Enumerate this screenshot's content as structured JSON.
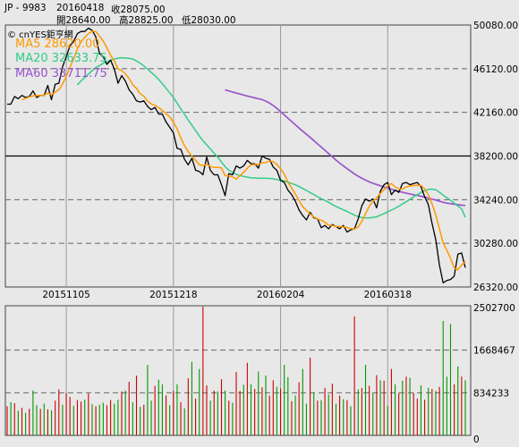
{
  "header": {
    "ticker": "JP - 9983",
    "date": "20160418",
    "close": "收28075.00",
    "open": "開28640.00",
    "high": "高28825.00",
    "low": "低28030.00"
  },
  "colors": {
    "background": "#e8e8e8",
    "price": "#000000",
    "ma5": "#ff9900",
    "ma20": "#33cc88",
    "ma60": "#9955cc",
    "volume_up": "#cc0000",
    "volume_down": "#009900",
    "grid_dash": "#666666",
    "grid_vertical": "#999999"
  },
  "chart_data": [
    {
      "type": "line",
      "title": "",
      "watermark": "© cnYES鉅亨網",
      "grid": true,
      "y_axis_side": "right",
      "ylim": [
        26320,
        50080
      ],
      "y_ticks": [
        26320,
        30280,
        34240,
        38200,
        42160,
        46120,
        50080
      ],
      "y_tick_labels": [
        "26320.00",
        "30280.00",
        "34240.00",
        "38200.00",
        "42160.00",
        "46120.00",
        "50080.00"
      ],
      "x_tick_labels": [
        "20151105",
        "20151218",
        "20160204",
        "20160318"
      ],
      "x_tick_index": [
        16,
        45,
        74,
        103
      ],
      "legend_entries": [
        "MA5 28620.00",
        "MA20 32633.75",
        "MA60 33711.75"
      ],
      "series": [
        {
          "name": "Close",
          "values": [
            42900,
            42900,
            43600,
            43400,
            43700,
            43500,
            43600,
            44100,
            43500,
            43700,
            43700,
            44600,
            43300,
            44700,
            44800,
            46300,
            47200,
            48200,
            48600,
            49300,
            49500,
            49500,
            49800,
            49600,
            49000,
            47500,
            47200,
            46500,
            46900,
            46100,
            44800,
            45500,
            45000,
            44200,
            43800,
            43200,
            43100,
            43200,
            42700,
            42400,
            42600,
            42000,
            42000,
            41300,
            40800,
            40300,
            38900,
            38800,
            37900,
            37400,
            38000,
            36900,
            36800,
            36500,
            38100,
            36900,
            36500,
            36500,
            35600,
            34600,
            36600,
            36500,
            37300,
            37100,
            37300,
            37800,
            37500,
            37500,
            37100,
            38200,
            38000,
            37900,
            37200,
            36900,
            36000,
            35800,
            35100,
            34700,
            34100,
            33300,
            32800,
            32400,
            33100,
            32600,
            32500,
            31700,
            31900,
            31600,
            32000,
            31800,
            31600,
            31900,
            31300,
            31500,
            31600,
            32500,
            33700,
            34300,
            34100,
            34300,
            33500,
            35000,
            35600,
            35800,
            34700,
            35100,
            34900,
            35700,
            35800,
            35600,
            35700,
            35800,
            35400,
            34500,
            33800,
            32100,
            30600,
            28300,
            26700,
            26900,
            27000,
            27300,
            29300,
            29400,
            28075
          ]
        },
        {
          "name": "MA5",
          "values": [
            null,
            null,
            null,
            null,
            43300,
            43420,
            43560,
            43660,
            43680,
            43680,
            43720,
            43900,
            43760,
            44000,
            44220,
            44740,
            45420,
            46240,
            47020,
            47920,
            48560,
            48980,
            49300,
            49520,
            49480,
            49080,
            48620,
            48000,
            47320,
            46840,
            46100,
            45960,
            45660,
            45220,
            44660,
            44340,
            43860,
            43620,
            43200,
            42920,
            42800,
            42580,
            42340,
            42060,
            41740,
            41280,
            40660,
            39820,
            39140,
            38600,
            38200,
            37800,
            37420,
            37320,
            37460,
            37240,
            37160,
            37160,
            37120,
            36420,
            36400,
            36300,
            36100,
            36420,
            36720,
            37100,
            37400,
            37440,
            37440,
            37580,
            37620,
            37740,
            37680,
            37440,
            37060,
            36560,
            35800,
            35300,
            34740,
            34180,
            33600,
            33260,
            32940,
            32680,
            32500,
            32380,
            32180,
            31920,
            31900,
            31800,
            31800,
            31760,
            31720,
            31600,
            31580,
            31760,
            32280,
            32960,
            33640,
            34080,
            34400,
            34800,
            35140,
            35520,
            35700,
            35400,
            35220,
            35200,
            35400,
            35480,
            35520,
            35560,
            35520,
            35220,
            34680,
            33880,
            32860,
            31600,
            30320,
            29640,
            28920,
            28040,
            27880,
            28320,
            28620
          ]
        },
        {
          "name": "MA20",
          "values": [
            null,
            null,
            null,
            null,
            null,
            null,
            null,
            null,
            null,
            null,
            null,
            null,
            null,
            null,
            null,
            null,
            null,
            null,
            null,
            44660,
            45010,
            45320,
            45630,
            45940,
            46210,
            46410,
            46610,
            46730,
            46890,
            47010,
            47070,
            47110,
            47090,
            47060,
            46990,
            46830,
            46620,
            46370,
            46090,
            45780,
            45490,
            45140,
            44760,
            44350,
            43930,
            43500,
            43000,
            42470,
            41970,
            41460,
            41000,
            40500,
            40030,
            39590,
            39210,
            38840,
            38460,
            38080,
            37660,
            37230,
            36930,
            36710,
            36540,
            36430,
            36340,
            36290,
            36220,
            36210,
            36180,
            36200,
            36180,
            36170,
            36130,
            36070,
            35990,
            35940,
            35830,
            35700,
            35590,
            35430,
            35260,
            35080,
            34880,
            34710,
            34510,
            34320,
            34180,
            34000,
            33800,
            33630,
            33470,
            33320,
            33170,
            33010,
            32830,
            32700,
            32620,
            32600,
            32590,
            32640,
            32680,
            32830,
            32980,
            33150,
            33290,
            33460,
            33640,
            33850,
            34050,
            34270,
            34500,
            34700,
            34890,
            35050,
            35170,
            35200,
            35140,
            34910,
            34660,
            34420,
            34180,
            33930,
            33670,
            33400,
            32633.75
          ]
        },
        {
          "name": "MA60",
          "values": [
            null,
            null,
            null,
            null,
            null,
            null,
            null,
            null,
            null,
            null,
            null,
            null,
            null,
            null,
            null,
            null,
            null,
            null,
            null,
            null,
            null,
            null,
            null,
            null,
            null,
            null,
            null,
            null,
            null,
            null,
            null,
            null,
            null,
            null,
            null,
            null,
            null,
            null,
            null,
            null,
            null,
            null,
            null,
            null,
            null,
            null,
            null,
            null,
            null,
            null,
            null,
            null,
            null,
            null,
            null,
            null,
            null,
            null,
            null,
            44200,
            44100,
            44000,
            43910,
            43820,
            43730,
            43640,
            43560,
            43480,
            43400,
            43320,
            43180,
            43000,
            42780,
            42520,
            42230,
            41930,
            41630,
            41330,
            41030,
            40730,
            40450,
            40170,
            39890,
            39600,
            39300,
            39010,
            38720,
            38430,
            38130,
            37830,
            37550,
            37300,
            37050,
            36810,
            36580,
            36370,
            36180,
            36010,
            35860,
            35730,
            35610,
            35500,
            35390,
            35280,
            35180,
            35090,
            35000,
            34910,
            34830,
            34760,
            34690,
            34620,
            34550,
            34470,
            34380,
            34290,
            34200,
            34100,
            34000,
            33930,
            33880,
            33830,
            33780,
            33740,
            33711.75
          ]
        }
      ]
    },
    {
      "type": "bar",
      "title": "",
      "ylim": [
        0,
        2502700
      ],
      "y_ticks": [
        0,
        834233,
        1668467,
        2502700
      ],
      "y_tick_labels": [
        "0",
        "834233",
        "1668467",
        "2502700"
      ],
      "series": [
        {
          "name": "Volume",
          "values": [
            570000,
            650000,
            630000,
            480000,
            540000,
            440000,
            520000,
            880000,
            590000,
            520000,
            620000,
            510000,
            490000,
            680000,
            900000,
            600000,
            830000,
            750000,
            580000,
            690000,
            660000,
            700000,
            820000,
            610000,
            570000,
            600000,
            640000,
            590000,
            690000,
            620000,
            700000,
            860000,
            880000,
            1050000,
            650000,
            1170000,
            560000,
            600000,
            1380000,
            680000,
            970000,
            1090000,
            1000000,
            780000,
            590000,
            870000,
            1000000,
            650000,
            530000,
            1120000,
            1440000,
            720000,
            1300000,
            2520000,
            980000,
            680000,
            880000,
            860000,
            1100000,
            880000,
            680000,
            640000,
            1240000,
            870000,
            990000,
            1420000,
            1000000,
            910000,
            1250000,
            940000,
            1170000,
            780000,
            1080000,
            950000,
            920000,
            1380000,
            1140000,
            670000,
            780000,
            1040000,
            1300000,
            620000,
            1520000,
            840000,
            680000,
            690000,
            930000,
            800000,
            1010000,
            620000,
            780000,
            710000,
            690000,
            570000,
            2330000,
            900000,
            930000,
            1380000,
            970000,
            820000,
            1180000,
            1080000,
            1070000,
            580000,
            1300000,
            1000000,
            830000,
            1070000,
            1150000,
            1130000,
            830000,
            720000,
            980000,
            700000,
            930000,
            910000,
            870000,
            950000,
            2240000,
            1150000,
            2180000,
            1000000,
            1350000,
            1150000,
            1080000
          ],
          "up": [
            true,
            false,
            true,
            false,
            true,
            false,
            true,
            false,
            false,
            true,
            false,
            true,
            false,
            true,
            true,
            false,
            true,
            true,
            false,
            true,
            true,
            false,
            true,
            false,
            true,
            false,
            false,
            true,
            true,
            false,
            false,
            true,
            false,
            true,
            false,
            true,
            false,
            true,
            false,
            false,
            true,
            false,
            false,
            true,
            false,
            true,
            false,
            true,
            false,
            true,
            false,
            true,
            false,
            true,
            true,
            false,
            true,
            false,
            true,
            false,
            true,
            false,
            true,
            true,
            false,
            true,
            false,
            true,
            false,
            true,
            false,
            true,
            true,
            false,
            true,
            false,
            false,
            true,
            false,
            true,
            false,
            false,
            true,
            false,
            true,
            false,
            true,
            false,
            true,
            false,
            true,
            false,
            true,
            false,
            true,
            false,
            true,
            false,
            true,
            false,
            true,
            false,
            true,
            false,
            true,
            false,
            true,
            false,
            true,
            false,
            true,
            true,
            false,
            true,
            false,
            true,
            false,
            true,
            false,
            false,
            false,
            true,
            false,
            true,
            false
          ]
        }
      ]
    }
  ]
}
